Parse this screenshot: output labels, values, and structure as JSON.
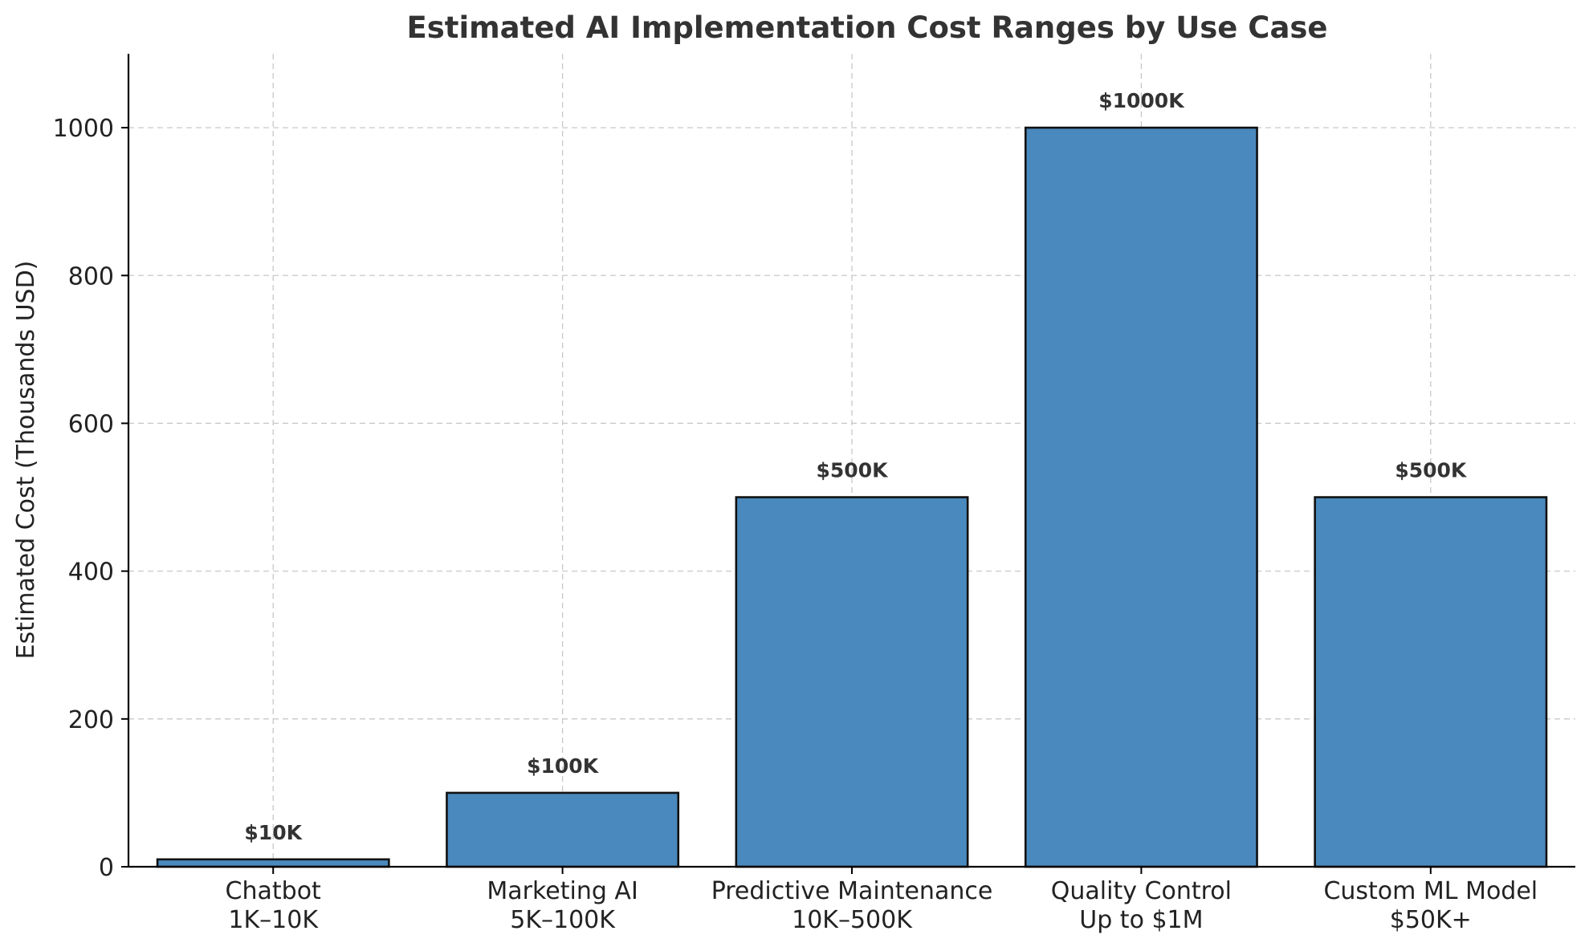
{
  "chart_data": {
    "type": "bar",
    "title": "Estimated AI Implementation Cost Ranges by Use Case",
    "xlabel": "",
    "ylabel": "Estimated Cost (Thousands USD)",
    "ylim": [
      0,
      1100
    ],
    "yticks": [
      0,
      200,
      400,
      600,
      800,
      1000
    ],
    "grid": true,
    "categories": [
      [
        "Chatbot",
        "1K–10K"
      ],
      [
        "Marketing AI",
        "5K–100K"
      ],
      [
        "Predictive Maintenance",
        "10K–500K"
      ],
      [
        "Quality Control",
        "Up to $1M"
      ],
      [
        "Custom ML Model",
        "$50K+"
      ]
    ],
    "values": [
      10,
      100,
      500,
      1000,
      500
    ],
    "data_labels": [
      "$10K",
      "$100K",
      "$500K",
      "$1000K",
      "$500K"
    ],
    "bar_color": "#4a89bd"
  }
}
